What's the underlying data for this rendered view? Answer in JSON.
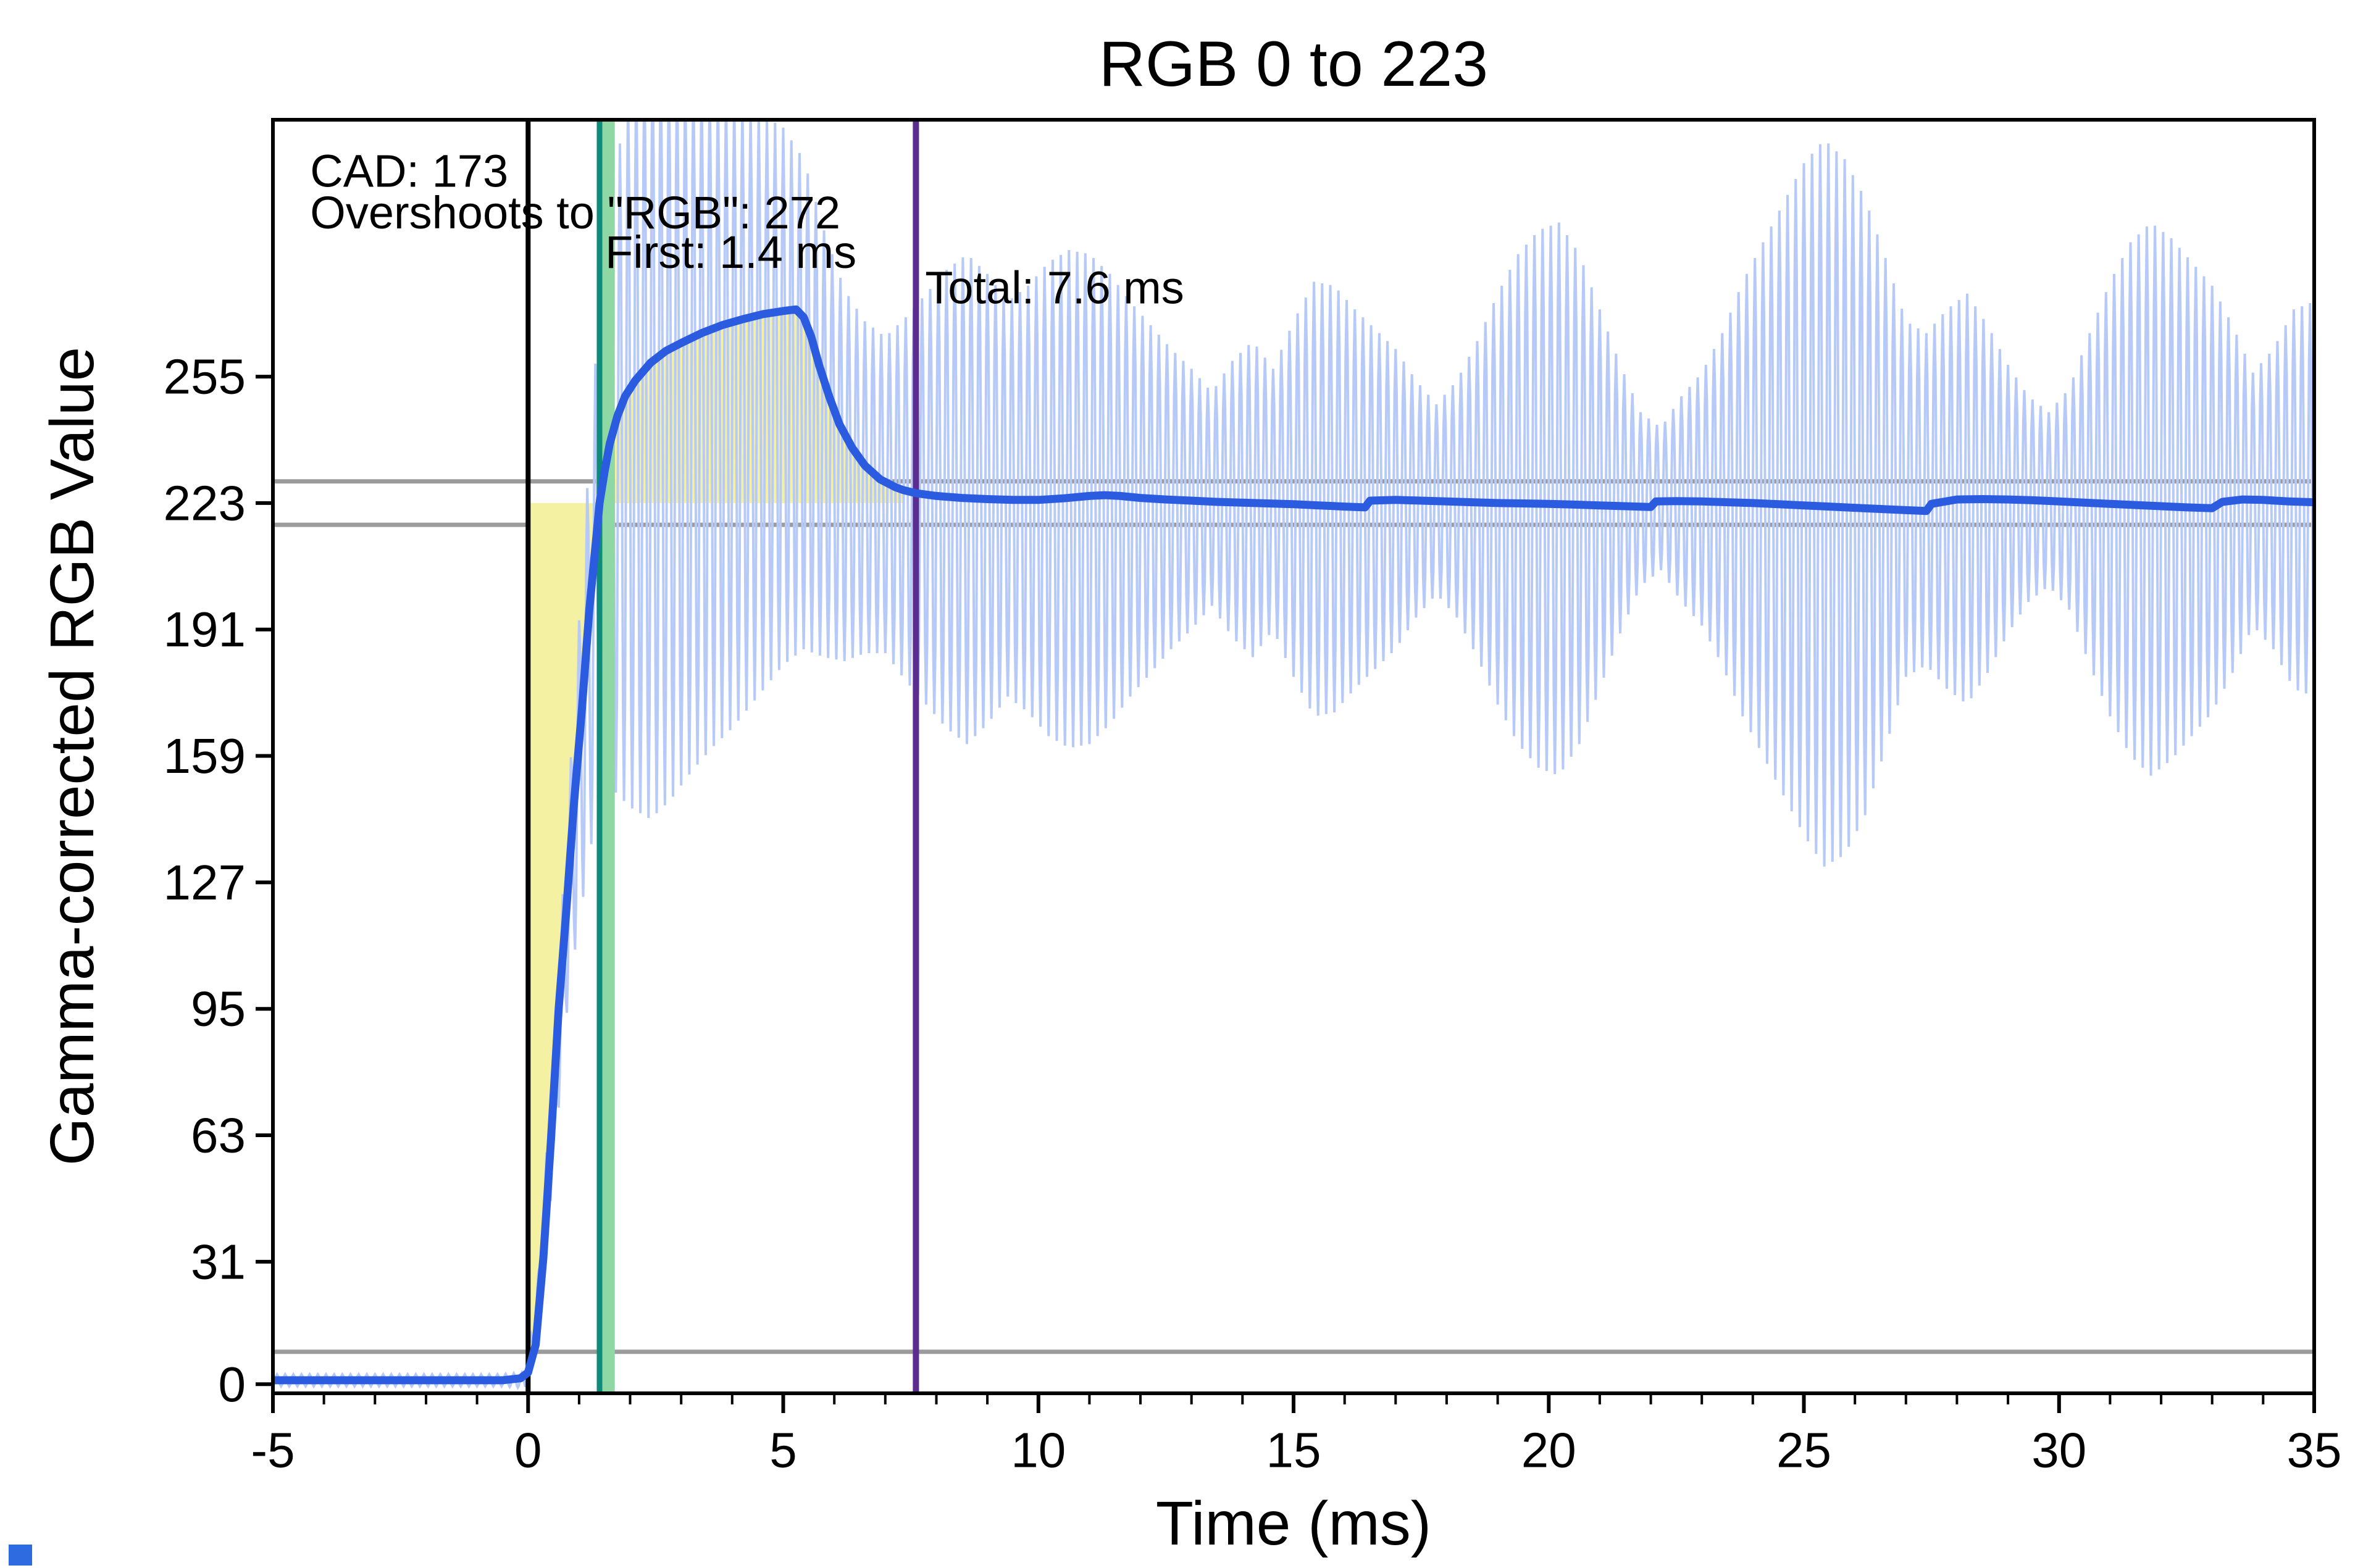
{
  "page": {
    "background": "#ffffff"
  },
  "chart_data": {
    "type": "line",
    "title": "RGB 0 to 223",
    "xlabel": "Time (ms)",
    "ylabel": "Gamma-corrected RGB Value",
    "xlim": [
      -5,
      35
    ],
    "ylim": [
      -2.3,
      320
    ],
    "x_ticks": [
      -5,
      0,
      5,
      10,
      15,
      20,
      25,
      30,
      35
    ],
    "x_minor_step": 1,
    "y_ticks": [
      0,
      31,
      63,
      95,
      127,
      159,
      191,
      223,
      255
    ],
    "grid": false,
    "legend": false,
    "transition": {
      "from_rgb": 0,
      "to_rgb": 223
    },
    "key_values": {
      "cad": 173,
      "overshoot_rgb": 272,
      "first_response_ms": 1.4,
      "total_response_ms": 7.6,
      "target_rgb": 223
    },
    "annotations": [
      {
        "name": "cad-annotation",
        "text": "CAD: 173",
        "x": -4.27,
        "y": 307
      },
      {
        "name": "overshoot-annotation",
        "text": "Overshoots to \"RGB\": 272",
        "x": -4.27,
        "y": 296.5
      },
      {
        "name": "first-response-annotation",
        "text": "First: 1.4 ms",
        "x": 1.51,
        "y": 286.5
      },
      {
        "name": "total-response-annotation",
        "text": "Total: 7.6 ms",
        "x": 7.78,
        "y": 277.5
      }
    ],
    "thresholds": {
      "color": "#9b9b9b",
      "values": [
        228.5,
        217.5,
        8.2
      ]
    },
    "markers": [
      {
        "type": "band",
        "x0": 1.43,
        "x1": 1.7,
        "color": "#8fd7a5",
        "name": "first-response-band"
      },
      {
        "type": "vline",
        "x": 0,
        "color": "#000000",
        "width": 8,
        "name": "transition-start-line"
      },
      {
        "type": "vline",
        "x": 1.4,
        "color": "#0e8a78",
        "width": 9,
        "name": "first-response-line"
      },
      {
        "type": "vline",
        "x": 7.6,
        "color": "#5c2d91",
        "width": 10,
        "name": "total-response-line"
      }
    ],
    "target": 223,
    "cad_region": [
      0,
      7.35
    ],
    "colors": {
      "response": "#2b5ce0",
      "raw": "#b7caf7",
      "cad_fill": "#f5f1a3",
      "frame": "#000000",
      "text": "#000000"
    },
    "smooth_curve": [
      [
        -5,
        1
      ],
      [
        -2,
        1
      ],
      [
        -0.5,
        1
      ],
      [
        -0.15,
        1.5
      ],
      [
        0,
        3
      ],
      [
        0.15,
        10
      ],
      [
        0.3,
        32
      ],
      [
        0.45,
        62
      ],
      [
        0.6,
        95
      ],
      [
        0.75,
        120
      ],
      [
        0.9,
        147
      ],
      [
        1.05,
        170
      ],
      [
        1.2,
        196
      ],
      [
        1.35,
        216
      ],
      [
        1.4,
        223
      ],
      [
        1.5,
        231
      ],
      [
        1.6,
        238
      ],
      [
        1.75,
        245
      ],
      [
        1.9,
        250
      ],
      [
        2.1,
        254
      ],
      [
        2.4,
        258.5
      ],
      [
        2.7,
        261.5
      ],
      [
        3,
        263.5
      ],
      [
        3.4,
        266
      ],
      [
        3.8,
        268
      ],
      [
        4.2,
        269.5
      ],
      [
        4.6,
        270.8
      ],
      [
        5,
        271.6
      ],
      [
        5.25,
        272
      ],
      [
        5.4,
        270
      ],
      [
        5.55,
        265
      ],
      [
        5.7,
        258
      ],
      [
        5.9,
        250
      ],
      [
        6.1,
        243
      ],
      [
        6.35,
        237
      ],
      [
        6.6,
        232.5
      ],
      [
        6.9,
        229
      ],
      [
        7.2,
        227
      ],
      [
        7.35,
        226.3
      ],
      [
        7.6,
        225.5
      ],
      [
        8,
        224.8
      ],
      [
        8.5,
        224.3
      ],
      [
        9,
        224
      ],
      [
        9.5,
        223.8
      ],
      [
        10,
        223.8
      ],
      [
        10.5,
        224.2
      ],
      [
        11,
        224.8
      ],
      [
        11.3,
        225
      ],
      [
        11.6,
        224.8
      ],
      [
        12,
        224.3
      ],
      [
        12.5,
        223.9
      ],
      [
        13,
        223.6
      ],
      [
        13.5,
        223.3
      ],
      [
        14,
        223.1
      ],
      [
        14.5,
        222.9
      ],
      [
        15,
        222.7
      ],
      [
        15.5,
        222.4
      ],
      [
        16,
        222.1
      ],
      [
        16.4,
        221.9
      ],
      [
        16.5,
        223.6
      ],
      [
        17,
        223.8
      ],
      [
        17.5,
        223.6
      ],
      [
        18,
        223.4
      ],
      [
        18.5,
        223.2
      ],
      [
        19,
        223
      ],
      [
        19.5,
        222.9
      ],
      [
        20,
        222.8
      ],
      [
        20.5,
        222.6
      ],
      [
        21,
        222.4
      ],
      [
        21.5,
        222.2
      ],
      [
        22,
        222
      ],
      [
        22.1,
        223.4
      ],
      [
        22.5,
        223.5
      ],
      [
        23,
        223.4
      ],
      [
        23.5,
        223.2
      ],
      [
        24,
        223
      ],
      [
        24.5,
        222.7
      ],
      [
        25,
        222.4
      ],
      [
        25.5,
        222.1
      ],
      [
        26,
        221.8
      ],
      [
        26.5,
        221.5
      ],
      [
        27,
        221.2
      ],
      [
        27.4,
        221
      ],
      [
        27.5,
        222.8
      ],
      [
        28,
        223.9
      ],
      [
        28.5,
        224
      ],
      [
        29,
        223.9
      ],
      [
        29.5,
        223.7
      ],
      [
        30,
        223.4
      ],
      [
        30.5,
        223.1
      ],
      [
        31,
        222.8
      ],
      [
        31.5,
        222.5
      ],
      [
        32,
        222.2
      ],
      [
        32.5,
        221.9
      ],
      [
        33,
        221.7
      ],
      [
        33.2,
        223.3
      ],
      [
        33.6,
        223.9
      ],
      [
        34,
        223.8
      ],
      [
        34.5,
        223.4
      ],
      [
        35,
        223.2
      ]
    ],
    "raw_envelope": [
      [
        -5,
        1,
        1.5
      ],
      [
        -0.5,
        1,
        1.5
      ],
      [
        -0.05,
        1,
        2
      ],
      [
        0.2,
        20,
        8
      ],
      [
        0.5,
        70,
        15
      ],
      [
        0.8,
        125,
        25
      ],
      [
        1.1,
        170,
        45
      ],
      [
        1.4,
        212,
        62
      ],
      [
        1.7,
        228,
        78
      ],
      [
        2,
        238,
        92
      ],
      [
        2.4,
        240,
        97
      ],
      [
        2.8,
        241,
        93
      ],
      [
        3.2,
        243,
        88
      ],
      [
        3.6,
        245,
        84
      ],
      [
        4,
        246,
        80
      ],
      [
        4.5,
        248,
        74
      ],
      [
        5,
        250,
        68
      ],
      [
        5.4,
        248,
        62
      ],
      [
        5.8,
        238,
        54
      ],
      [
        6.2,
        230,
        47
      ],
      [
        6.6,
        227,
        42
      ],
      [
        7,
        225,
        40
      ],
      [
        7.4,
        224,
        46
      ],
      [
        7.8,
        224,
        52
      ],
      [
        8.2,
        224,
        58
      ],
      [
        8.6,
        224,
        62
      ],
      [
        9,
        224,
        57
      ],
      [
        9.4,
        224,
        50
      ],
      [
        9.8,
        224,
        54
      ],
      [
        10.2,
        224,
        60
      ],
      [
        10.6,
        224,
        63
      ],
      [
        11,
        224,
        62
      ],
      [
        11.4,
        224,
        57
      ],
      [
        11.8,
        224,
        50
      ],
      [
        12.2,
        224,
        44
      ],
      [
        12.6,
        224,
        38
      ],
      [
        13,
        224,
        33
      ],
      [
        13.4,
        224,
        27
      ],
      [
        13.8,
        224,
        35
      ],
      [
        14.2,
        224,
        40
      ],
      [
        14.6,
        224,
        33
      ],
      [
        15,
        224,
        45
      ],
      [
        15.4,
        224,
        55
      ],
      [
        15.8,
        224,
        54
      ],
      [
        16.2,
        224,
        48
      ],
      [
        16.6,
        224,
        43
      ],
      [
        17,
        224,
        38
      ],
      [
        17.4,
        224,
        30
      ],
      [
        17.8,
        224,
        24
      ],
      [
        18.2,
        224,
        30
      ],
      [
        18.6,
        224,
        40
      ],
      [
        19,
        224,
        52
      ],
      [
        19.4,
        224,
        62
      ],
      [
        19.8,
        224,
        68
      ],
      [
        20.2,
        224,
        70
      ],
      [
        20.6,
        224,
        62
      ],
      [
        21,
        224,
        48
      ],
      [
        21.4,
        224,
        34
      ],
      [
        21.8,
        224,
        22
      ],
      [
        22.2,
        224,
        18
      ],
      [
        22.6,
        224,
        26
      ],
      [
        23,
        224,
        32
      ],
      [
        23.4,
        224,
        42
      ],
      [
        23.8,
        224,
        55
      ],
      [
        24.2,
        224,
        65
      ],
      [
        24.6,
        224,
        75
      ],
      [
        25,
        224,
        85
      ],
      [
        25.4,
        223,
        92
      ],
      [
        25.8,
        222,
        88
      ],
      [
        26.2,
        222,
        78
      ],
      [
        26.6,
        223,
        62
      ],
      [
        27,
        224,
        45
      ],
      [
        27.4,
        224,
        42
      ],
      [
        27.8,
        224,
        48
      ],
      [
        28.2,
        224,
        52
      ],
      [
        28.6,
        224,
        44
      ],
      [
        29,
        224,
        34
      ],
      [
        29.4,
        224,
        26
      ],
      [
        29.8,
        224,
        22
      ],
      [
        30.2,
        224,
        28
      ],
      [
        30.6,
        224,
        42
      ],
      [
        31,
        224,
        55
      ],
      [
        31.4,
        224,
        65
      ],
      [
        31.8,
        224,
        70
      ],
      [
        32.2,
        224,
        66
      ],
      [
        32.6,
        224,
        60
      ],
      [
        33,
        224,
        54
      ],
      [
        33.4,
        224,
        44
      ],
      [
        33.8,
        224,
        32
      ],
      [
        34.2,
        224,
        38
      ],
      [
        34.6,
        224,
        48
      ],
      [
        35,
        224,
        50
      ]
    ],
    "carrier_period_ms": 0.16,
    "sample_step_ms": 0.02
  },
  "misc": {
    "corner_mark_color": "#2e6be0"
  }
}
